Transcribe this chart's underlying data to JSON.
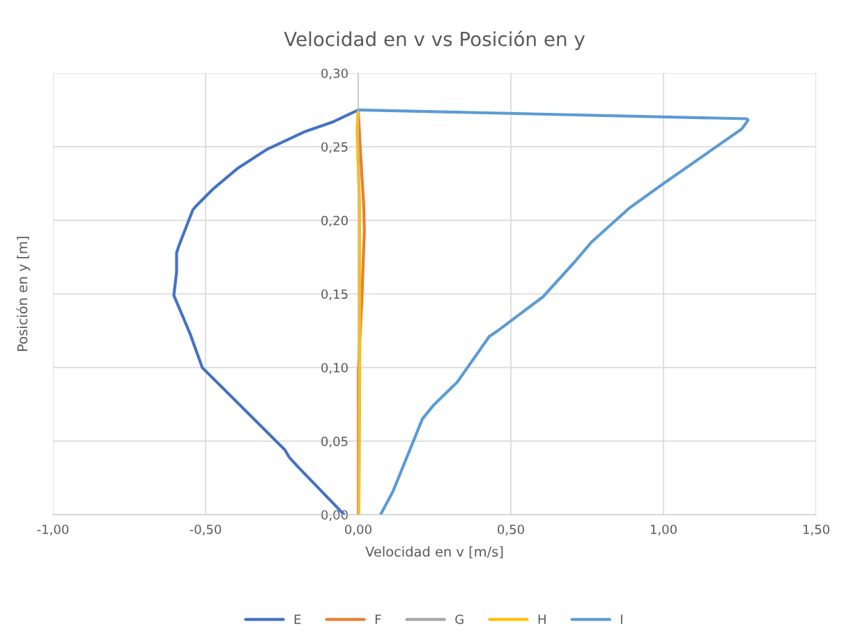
{
  "chart_data": {
    "type": "line",
    "title": "Velocidad en v vs Posición en y",
    "xlabel": "Velocidad en v [m/s]",
    "ylabel": "Posición en y [m]",
    "xlim": [
      -1,
      1.5
    ],
    "ylim": [
      0,
      0.3
    ],
    "xticks": [
      {
        "value": -1,
        "label": "-1,00"
      },
      {
        "value": -0.5,
        "label": "-0,50"
      },
      {
        "value": 0,
        "label": "0,00"
      },
      {
        "value": 0.5,
        "label": "0,50"
      },
      {
        "value": 1,
        "label": "1,00"
      },
      {
        "value": 1.5,
        "label": "1,50"
      }
    ],
    "yticks": [
      {
        "value": 0,
        "label": "0,00"
      },
      {
        "value": 0.05,
        "label": "0,05"
      },
      {
        "value": 0.1,
        "label": "0,10"
      },
      {
        "value": 0.15,
        "label": "0,15"
      },
      {
        "value": 0.2,
        "label": "0,20"
      },
      {
        "value": 0.25,
        "label": "0,25"
      },
      {
        "value": 0.3,
        "label": "0,30"
      }
    ],
    "grid": true,
    "legend": "bottom",
    "marker": "none",
    "line_style": "solid",
    "series": [
      {
        "name": "E",
        "color": "#4472c4",
        "x": [
          -0.046,
          -0.195,
          -0.226,
          -0.24,
          -0.511,
          -0.551,
          -0.604,
          -0.595,
          -0.595,
          -0.587,
          -0.542,
          -0.53,
          -0.477,
          -0.397,
          -0.301,
          -0.178,
          -0.081,
          0
        ],
        "values": [
          0,
          0.032,
          0.039,
          0.044,
          0.1,
          0.123,
          0.149,
          0.165,
          0.178,
          0.183,
          0.207,
          0.21,
          0.221,
          0.235,
          0.248,
          0.26,
          0.267,
          0.275
        ]
      },
      {
        "name": "F",
        "color": "#ed7d31",
        "x": [
          0,
          0,
          0.012,
          0.02,
          0.018,
          0.007,
          0
        ],
        "values": [
          0,
          0.097,
          0.147,
          0.193,
          0.21,
          0.247,
          0.275
        ]
      },
      {
        "name": "G",
        "color": "#a5a5a5",
        "x": [
          0.002,
          0.004,
          0.004,
          -0.003,
          0
        ],
        "values": [
          0,
          0.11,
          0.21,
          0.262,
          0.275
        ]
      },
      {
        "name": "H",
        "color": "#ffc000",
        "x": [
          0.002,
          0.005,
          0.004,
          -0.004,
          0
        ],
        "values": [
          0,
          0.11,
          0.21,
          0.262,
          0.275
        ]
      },
      {
        "name": "I",
        "color": "#5b9bd5",
        "x": [
          0.073,
          0.114,
          0.21,
          0.245,
          0.324,
          0.429,
          0.457,
          0.605,
          0.71,
          0.763,
          0.886,
          1.0,
          1.159,
          1.256,
          1.277,
          1.273,
          0
        ],
        "values": [
          0,
          0.016,
          0.065,
          0.074,
          0.09,
          0.121,
          0.125,
          0.148,
          0.172,
          0.185,
          0.208,
          0.225,
          0.248,
          0.262,
          0.268,
          0.269,
          0.275
        ]
      }
    ]
  }
}
